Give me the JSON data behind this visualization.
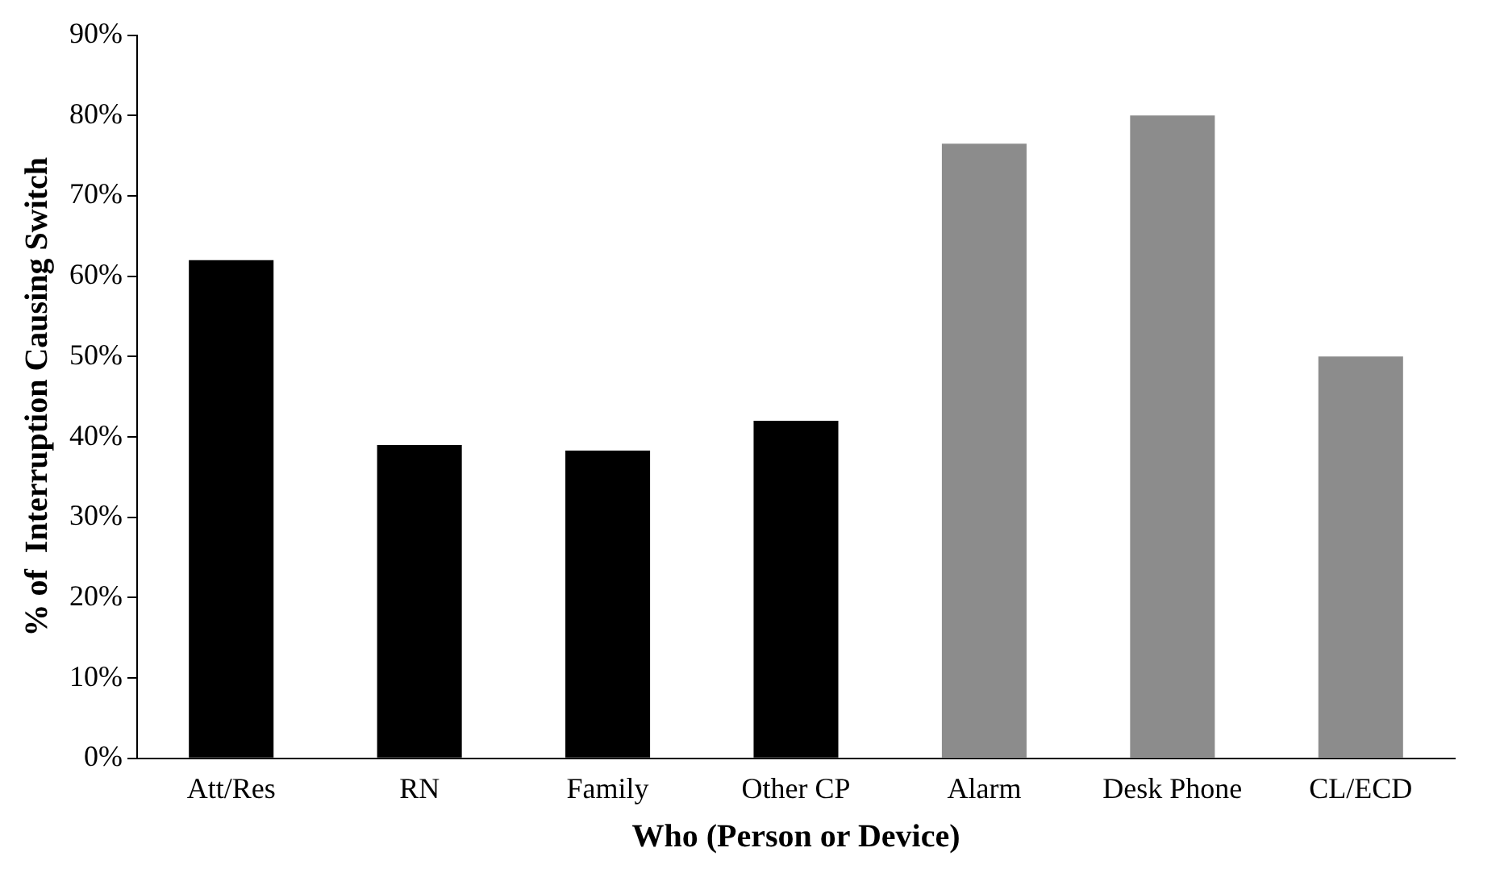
{
  "chart_data": {
    "type": "bar",
    "xlabel": "Who (Person or Device)",
    "ylabel": "% of  Interruption Causing Switch",
    "categories": [
      "Att/Res",
      "RN",
      "Family",
      "Other CP",
      "Alarm",
      "Desk Phone",
      "CL/ECD"
    ],
    "values": [
      62,
      39,
      38.3,
      42,
      76.5,
      80,
      50
    ],
    "colors": [
      "#000000",
      "#000000",
      "#000000",
      "#000000",
      "#8c8c8c",
      "#8c8c8c",
      "#8c8c8c"
    ],
    "ylim": [
      0,
      90
    ],
    "yticks": [
      {
        "value": 0,
        "label": "0%"
      },
      {
        "value": 10,
        "label": "10%"
      },
      {
        "value": 20,
        "label": "20%"
      },
      {
        "value": 30,
        "label": "30%"
      },
      {
        "value": 40,
        "label": "40%"
      },
      {
        "value": 50,
        "label": "50%"
      },
      {
        "value": 60,
        "label": "60%"
      },
      {
        "value": 70,
        "label": "70%"
      },
      {
        "value": 80,
        "label": "80%"
      },
      {
        "value": 90,
        "label": "90%"
      }
    ],
    "grid": false,
    "legend": false
  }
}
